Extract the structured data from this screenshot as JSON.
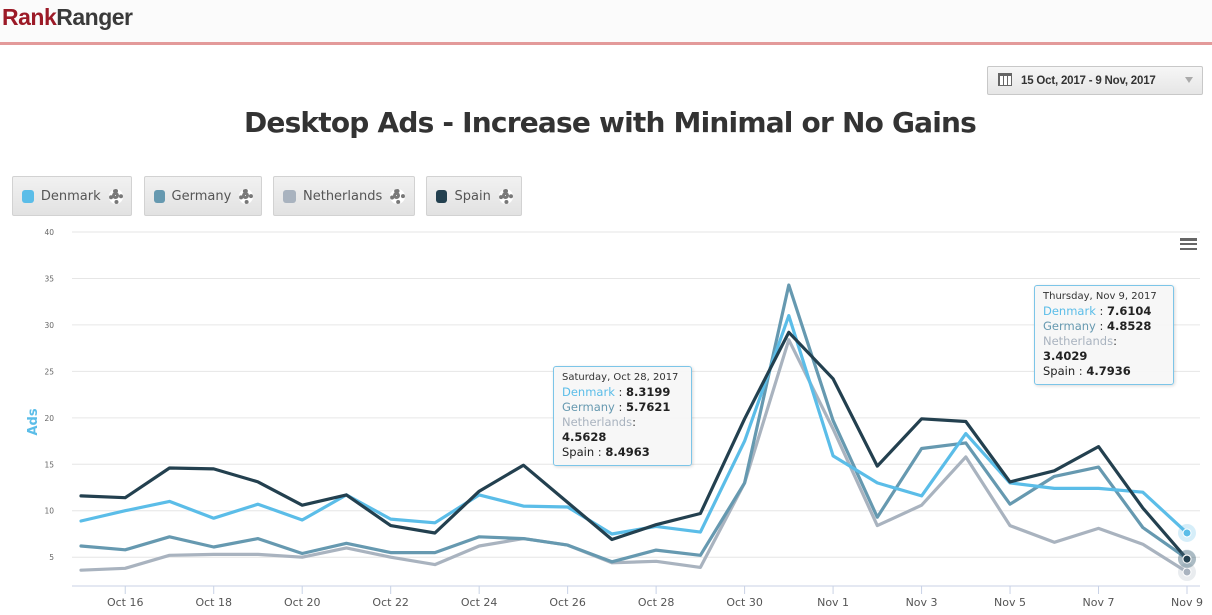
{
  "header": {
    "logo_part1": "Rank",
    "logo_part2": "Ranger"
  },
  "date_range": {
    "label": "15 Oct, 2017 - 9 Nov, 2017",
    "icon": "calendar-icon"
  },
  "menu_icon": "hamburger-menu-icon",
  "legend": [
    {
      "name": "Denmark",
      "color": "#5bbde8",
      "icon": "gear-icon"
    },
    {
      "name": "Germany",
      "color": "#6699b0",
      "icon": "gear-icon"
    },
    {
      "name": "Netherlands",
      "color": "#a9b3bf",
      "icon": "gear-icon"
    },
    {
      "name": "Spain",
      "color": "#23404f",
      "icon": "gear-icon"
    }
  ],
  "tooltips": [
    {
      "date": "Saturday, Oct 28, 2017",
      "rows": [
        {
          "name": "Denmark",
          "sep": " : ",
          "value": "8.3199",
          "color": "#5bbde8"
        },
        {
          "name": "Germany",
          "sep": " : ",
          "value": "5.7621",
          "color": "#6699b0"
        },
        {
          "name": "Netherlands",
          "sep": ": ",
          "value": "4.5628",
          "color": "#a9b3bf"
        },
        {
          "name": "Spain",
          "sep": " : ",
          "value": "8.4963",
          "color": "#222222"
        }
      ]
    },
    {
      "date": "Thursday, Nov 9, 2017",
      "rows": [
        {
          "name": "Denmark",
          "sep": " : ",
          "value": "7.6104",
          "color": "#5bbde8"
        },
        {
          "name": "Germany",
          "sep": " : ",
          "value": "4.8528",
          "color": "#6699b0"
        },
        {
          "name": "Netherlands",
          "sep": ": ",
          "value": "3.4029",
          "color": "#a9b3bf"
        },
        {
          "name": "Spain",
          "sep": " : ",
          "value": "4.7936",
          "color": "#222222"
        }
      ]
    }
  ],
  "chart_data": {
    "type": "line",
    "title": "Desktop Ads - Increase with Minimal or No Gains",
    "xlabel": "",
    "ylabel": "Ads",
    "ylim": [
      1.9,
      40
    ],
    "yticks": [
      5,
      10,
      15,
      20,
      25,
      30,
      35,
      40
    ],
    "grid": true,
    "legend_position": "top-left",
    "x": [
      "Oct 15",
      "Oct 16",
      "Oct 17",
      "Oct 18",
      "Oct 19",
      "Oct 20",
      "Oct 21",
      "Oct 22",
      "Oct 23",
      "Oct 24",
      "Oct 25",
      "Oct 26",
      "Oct 27",
      "Oct 28",
      "Oct 29",
      "Oct 30",
      "Oct 31",
      "Nov 1",
      "Nov 2",
      "Nov 3",
      "Nov 4",
      "Nov 5",
      "Nov 6",
      "Nov 7",
      "Nov 8",
      "Nov 9"
    ],
    "xtick_labels": [
      "Oct 16",
      "Oct 18",
      "Oct 20",
      "Oct 22",
      "Oct 24",
      "Oct 26",
      "Oct 28",
      "Oct 30",
      "Nov 1",
      "Nov 3",
      "Nov 5",
      "Nov 7",
      "Nov 9"
    ],
    "series": [
      {
        "name": "Denmark",
        "color": "#5bbde8",
        "values": [
          8.9,
          10.0,
          11.0,
          9.2,
          10.7,
          9.0,
          11.7,
          9.1,
          8.7,
          11.7,
          10.5,
          10.4,
          7.5,
          8.3199,
          7.7,
          17.5,
          31.0,
          15.9,
          13.0,
          11.6,
          18.3,
          13.0,
          12.4,
          12.4,
          12.0,
          7.6104
        ]
      },
      {
        "name": "Germany",
        "color": "#6699b0",
        "values": [
          6.2,
          5.8,
          7.2,
          6.1,
          7.0,
          5.4,
          6.5,
          5.5,
          5.5,
          7.2,
          7.0,
          6.3,
          4.5,
          5.7621,
          5.2,
          13.0,
          34.3,
          19.7,
          9.3,
          16.7,
          17.3,
          10.7,
          13.7,
          14.7,
          8.2,
          4.8528
        ]
      },
      {
        "name": "Netherlands",
        "color": "#a9b3bf",
        "values": [
          3.6,
          3.8,
          5.2,
          5.3,
          5.3,
          5.0,
          6.0,
          5.0,
          4.2,
          6.2,
          7.0,
          6.3,
          4.4,
          4.5628,
          3.9,
          13.0,
          28.4,
          18.8,
          8.4,
          10.6,
          15.8,
          8.4,
          6.6,
          8.1,
          6.4,
          3.4029
        ]
      },
      {
        "name": "Spain",
        "color": "#23404f",
        "values": [
          11.6,
          11.4,
          14.6,
          14.5,
          13.1,
          10.6,
          11.7,
          8.4,
          7.6,
          12.1,
          14.9,
          10.9,
          6.9,
          8.4963,
          9.7,
          19.9,
          29.2,
          24.2,
          14.8,
          19.9,
          19.6,
          13.1,
          14.3,
          16.9,
          10.3,
          4.7936
        ]
      }
    ]
  }
}
